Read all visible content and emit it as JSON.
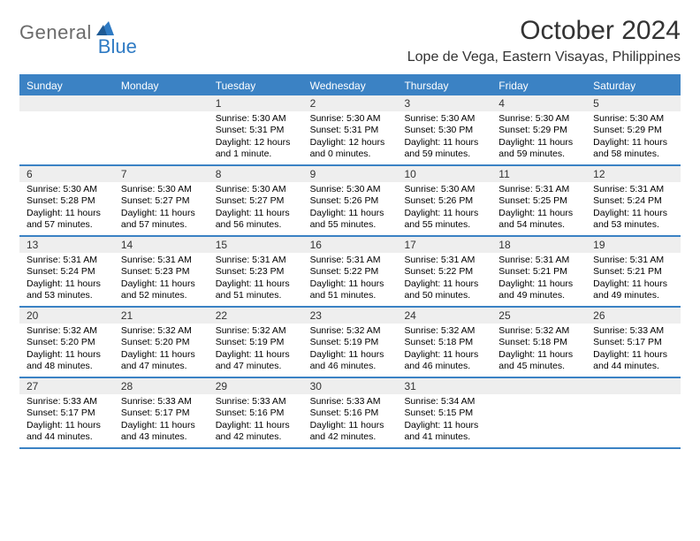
{
  "brand": {
    "part1": "General",
    "part2": "Blue"
  },
  "title": "October 2024",
  "location": "Lope de Vega, Eastern Visayas, Philippines",
  "colors": {
    "header_bg": "#3b82c4",
    "header_text": "#ffffff",
    "daynum_bg": "#eeeeee",
    "text": "#000000",
    "logo_gray": "#6b6b6b",
    "logo_blue": "#2f7bc4",
    "title_color": "#333333"
  },
  "day_names": [
    "Sunday",
    "Monday",
    "Tuesday",
    "Wednesday",
    "Thursday",
    "Friday",
    "Saturday"
  ],
  "weeks": [
    [
      {
        "num": "",
        "lines": []
      },
      {
        "num": "",
        "lines": []
      },
      {
        "num": "1",
        "lines": [
          "Sunrise: 5:30 AM",
          "Sunset: 5:31 PM",
          "Daylight: 12 hours",
          "and 1 minute."
        ]
      },
      {
        "num": "2",
        "lines": [
          "Sunrise: 5:30 AM",
          "Sunset: 5:31 PM",
          "Daylight: 12 hours",
          "and 0 minutes."
        ]
      },
      {
        "num": "3",
        "lines": [
          "Sunrise: 5:30 AM",
          "Sunset: 5:30 PM",
          "Daylight: 11 hours",
          "and 59 minutes."
        ]
      },
      {
        "num": "4",
        "lines": [
          "Sunrise: 5:30 AM",
          "Sunset: 5:29 PM",
          "Daylight: 11 hours",
          "and 59 minutes."
        ]
      },
      {
        "num": "5",
        "lines": [
          "Sunrise: 5:30 AM",
          "Sunset: 5:29 PM",
          "Daylight: 11 hours",
          "and 58 minutes."
        ]
      }
    ],
    [
      {
        "num": "6",
        "lines": [
          "Sunrise: 5:30 AM",
          "Sunset: 5:28 PM",
          "Daylight: 11 hours",
          "and 57 minutes."
        ]
      },
      {
        "num": "7",
        "lines": [
          "Sunrise: 5:30 AM",
          "Sunset: 5:27 PM",
          "Daylight: 11 hours",
          "and 57 minutes."
        ]
      },
      {
        "num": "8",
        "lines": [
          "Sunrise: 5:30 AM",
          "Sunset: 5:27 PM",
          "Daylight: 11 hours",
          "and 56 minutes."
        ]
      },
      {
        "num": "9",
        "lines": [
          "Sunrise: 5:30 AM",
          "Sunset: 5:26 PM",
          "Daylight: 11 hours",
          "and 55 minutes."
        ]
      },
      {
        "num": "10",
        "lines": [
          "Sunrise: 5:30 AM",
          "Sunset: 5:26 PM",
          "Daylight: 11 hours",
          "and 55 minutes."
        ]
      },
      {
        "num": "11",
        "lines": [
          "Sunrise: 5:31 AM",
          "Sunset: 5:25 PM",
          "Daylight: 11 hours",
          "and 54 minutes."
        ]
      },
      {
        "num": "12",
        "lines": [
          "Sunrise: 5:31 AM",
          "Sunset: 5:24 PM",
          "Daylight: 11 hours",
          "and 53 minutes."
        ]
      }
    ],
    [
      {
        "num": "13",
        "lines": [
          "Sunrise: 5:31 AM",
          "Sunset: 5:24 PM",
          "Daylight: 11 hours",
          "and 53 minutes."
        ]
      },
      {
        "num": "14",
        "lines": [
          "Sunrise: 5:31 AM",
          "Sunset: 5:23 PM",
          "Daylight: 11 hours",
          "and 52 minutes."
        ]
      },
      {
        "num": "15",
        "lines": [
          "Sunrise: 5:31 AM",
          "Sunset: 5:23 PM",
          "Daylight: 11 hours",
          "and 51 minutes."
        ]
      },
      {
        "num": "16",
        "lines": [
          "Sunrise: 5:31 AM",
          "Sunset: 5:22 PM",
          "Daylight: 11 hours",
          "and 51 minutes."
        ]
      },
      {
        "num": "17",
        "lines": [
          "Sunrise: 5:31 AM",
          "Sunset: 5:22 PM",
          "Daylight: 11 hours",
          "and 50 minutes."
        ]
      },
      {
        "num": "18",
        "lines": [
          "Sunrise: 5:31 AM",
          "Sunset: 5:21 PM",
          "Daylight: 11 hours",
          "and 49 minutes."
        ]
      },
      {
        "num": "19",
        "lines": [
          "Sunrise: 5:31 AM",
          "Sunset: 5:21 PM",
          "Daylight: 11 hours",
          "and 49 minutes."
        ]
      }
    ],
    [
      {
        "num": "20",
        "lines": [
          "Sunrise: 5:32 AM",
          "Sunset: 5:20 PM",
          "Daylight: 11 hours",
          "and 48 minutes."
        ]
      },
      {
        "num": "21",
        "lines": [
          "Sunrise: 5:32 AM",
          "Sunset: 5:20 PM",
          "Daylight: 11 hours",
          "and 47 minutes."
        ]
      },
      {
        "num": "22",
        "lines": [
          "Sunrise: 5:32 AM",
          "Sunset: 5:19 PM",
          "Daylight: 11 hours",
          "and 47 minutes."
        ]
      },
      {
        "num": "23",
        "lines": [
          "Sunrise: 5:32 AM",
          "Sunset: 5:19 PM",
          "Daylight: 11 hours",
          "and 46 minutes."
        ]
      },
      {
        "num": "24",
        "lines": [
          "Sunrise: 5:32 AM",
          "Sunset: 5:18 PM",
          "Daylight: 11 hours",
          "and 46 minutes."
        ]
      },
      {
        "num": "25",
        "lines": [
          "Sunrise: 5:32 AM",
          "Sunset: 5:18 PM",
          "Daylight: 11 hours",
          "and 45 minutes."
        ]
      },
      {
        "num": "26",
        "lines": [
          "Sunrise: 5:33 AM",
          "Sunset: 5:17 PM",
          "Daylight: 11 hours",
          "and 44 minutes."
        ]
      }
    ],
    [
      {
        "num": "27",
        "lines": [
          "Sunrise: 5:33 AM",
          "Sunset: 5:17 PM",
          "Daylight: 11 hours",
          "and 44 minutes."
        ]
      },
      {
        "num": "28",
        "lines": [
          "Sunrise: 5:33 AM",
          "Sunset: 5:17 PM",
          "Daylight: 11 hours",
          "and 43 minutes."
        ]
      },
      {
        "num": "29",
        "lines": [
          "Sunrise: 5:33 AM",
          "Sunset: 5:16 PM",
          "Daylight: 11 hours",
          "and 42 minutes."
        ]
      },
      {
        "num": "30",
        "lines": [
          "Sunrise: 5:33 AM",
          "Sunset: 5:16 PM",
          "Daylight: 11 hours",
          "and 42 minutes."
        ]
      },
      {
        "num": "31",
        "lines": [
          "Sunrise: 5:34 AM",
          "Sunset: 5:15 PM",
          "Daylight: 11 hours",
          "and 41 minutes."
        ]
      },
      {
        "num": "",
        "lines": []
      },
      {
        "num": "",
        "lines": []
      }
    ]
  ]
}
